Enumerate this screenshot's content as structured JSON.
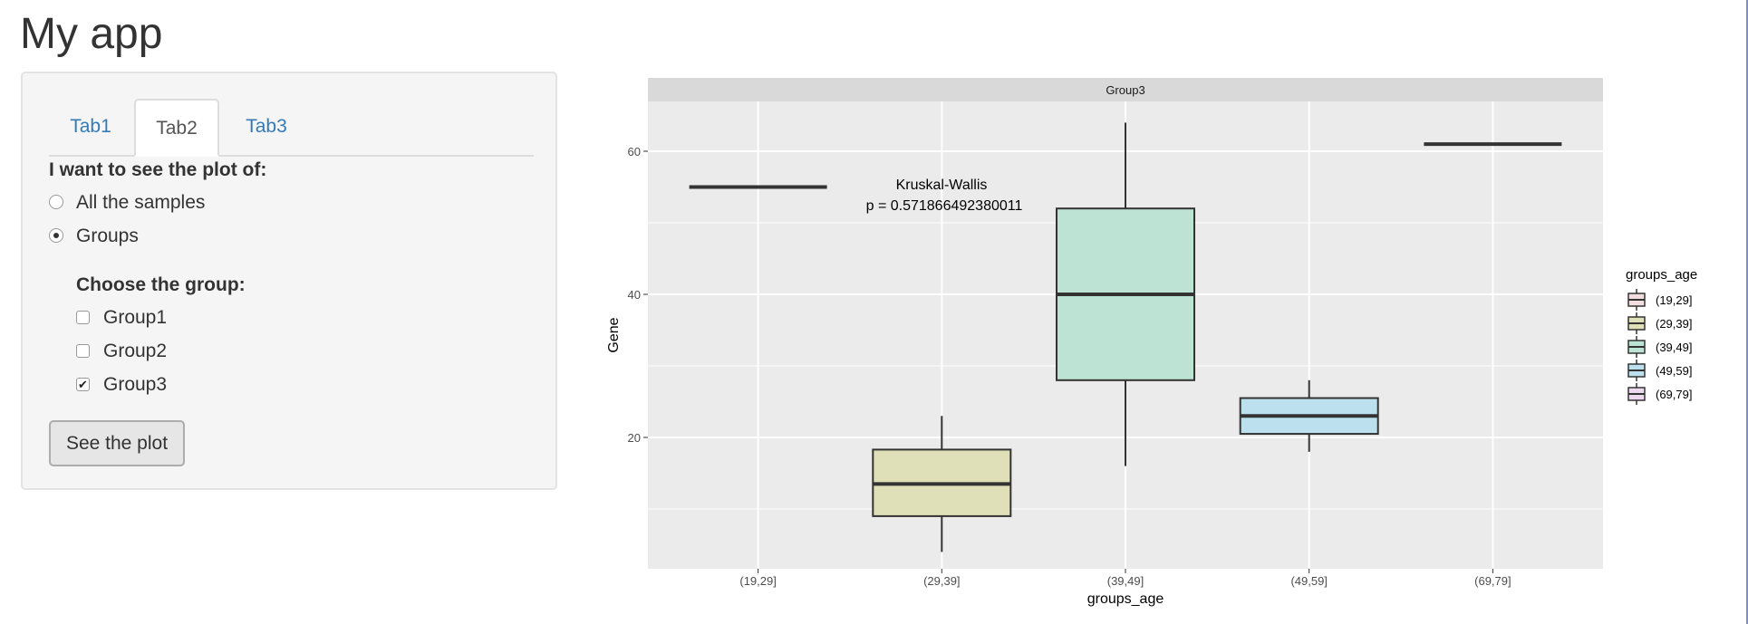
{
  "app": {
    "title": "My app"
  },
  "tabs": [
    {
      "label": "Tab1",
      "active": false
    },
    {
      "label": "Tab2",
      "active": true
    },
    {
      "label": "Tab3",
      "active": false
    }
  ],
  "form": {
    "plot_label": "I want to see the plot of:",
    "radio_options": [
      {
        "label": "All the samples",
        "checked": false
      },
      {
        "label": "Groups",
        "checked": true
      }
    ],
    "group_label": "Choose the group:",
    "group_options": [
      {
        "label": "Group1",
        "checked": false
      },
      {
        "label": "Group2",
        "checked": false
      },
      {
        "label": "Group3",
        "checked": true
      }
    ],
    "button_label": "See the plot"
  },
  "chart_data": {
    "type": "box",
    "facet_title": "Group3",
    "xlabel": "groups_age",
    "ylabel": "Gene",
    "ylim": [
      0,
      68
    ],
    "yticks": [
      20,
      40,
      60
    ],
    "grid": true,
    "categories": [
      "(19,29]",
      "(29,39]",
      "(39,49]",
      "(49,59]",
      "(69,79]"
    ],
    "boxes": [
      {
        "category": "(19,29]",
        "min": 55,
        "q1": 55,
        "median": 55,
        "q3": 55,
        "max": 55,
        "fill": "#f2dede"
      },
      {
        "category": "(29,39]",
        "min": 4,
        "q1": 9,
        "median": 13.5,
        "q3": 18.3,
        "max": 23,
        "fill": "#dfdfb8"
      },
      {
        "category": "(39,49]",
        "min": 16,
        "q1": 28,
        "median": 40,
        "q3": 52,
        "max": 64,
        "fill": "#bde3d5"
      },
      {
        "category": "(49,59]",
        "min": 18,
        "q1": 20.5,
        "median": 23,
        "q3": 25.5,
        "max": 28,
        "fill": "#bde0ee"
      },
      {
        "category": "(69,79]",
        "min": 61,
        "q1": 61,
        "median": 61,
        "q3": 61,
        "max": 61,
        "fill": "#ecd9ee"
      }
    ],
    "annotation": {
      "line1": "Kruskal-Wallis",
      "line2": "p = 0.571866492380011"
    },
    "legend": {
      "title": "groups_age",
      "position": "right",
      "items": [
        {
          "label": "(19,29]",
          "fill": "#f2dede"
        },
        {
          "label": "(29,39]",
          "fill": "#dfdfb8"
        },
        {
          "label": "(39,49]",
          "fill": "#bde3d5"
        },
        {
          "label": "(49,59]",
          "fill": "#bde0ee"
        },
        {
          "label": "(69,79]",
          "fill": "#ecd9ee"
        }
      ]
    }
  }
}
